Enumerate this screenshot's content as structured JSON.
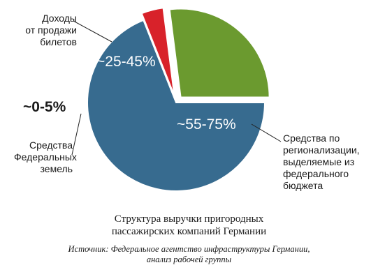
{
  "chart_data": {
    "type": "pie",
    "slices": [
      {
        "label": "Средства по регионализации, выделяемые из федерального бюджета",
        "label_lines": [
          "Средства по",
          "регионализации,",
          "выделяемые из",
          "федерального",
          "бюджета"
        ],
        "value_label": "~55-75%",
        "value": 69,
        "color": "#376b8f",
        "exploded": false
      },
      {
        "label": "Средства Федеральных земель",
        "label_lines": [
          "Средства",
          "Федеральных",
          "земель"
        ],
        "value_label": "~0-5%",
        "value": 4,
        "color": "#d8222a",
        "exploded": true
      },
      {
        "label": "Доходы от продажи билетов",
        "label_lines": [
          "Доходы",
          "от продажи",
          "билетов"
        ],
        "value_label": "~25-45%",
        "value": 27,
        "color": "#6b9a2f",
        "exploded": true
      }
    ],
    "legend": "none"
  },
  "caption": {
    "title_line1": "Структура выручки пригородных",
    "title_line2": "пассажирских компаний Германии",
    "source_line1": "Источник: Федеральное агентство инфраструктуры Германии,",
    "source_line2": "анализ рабочей группы"
  }
}
